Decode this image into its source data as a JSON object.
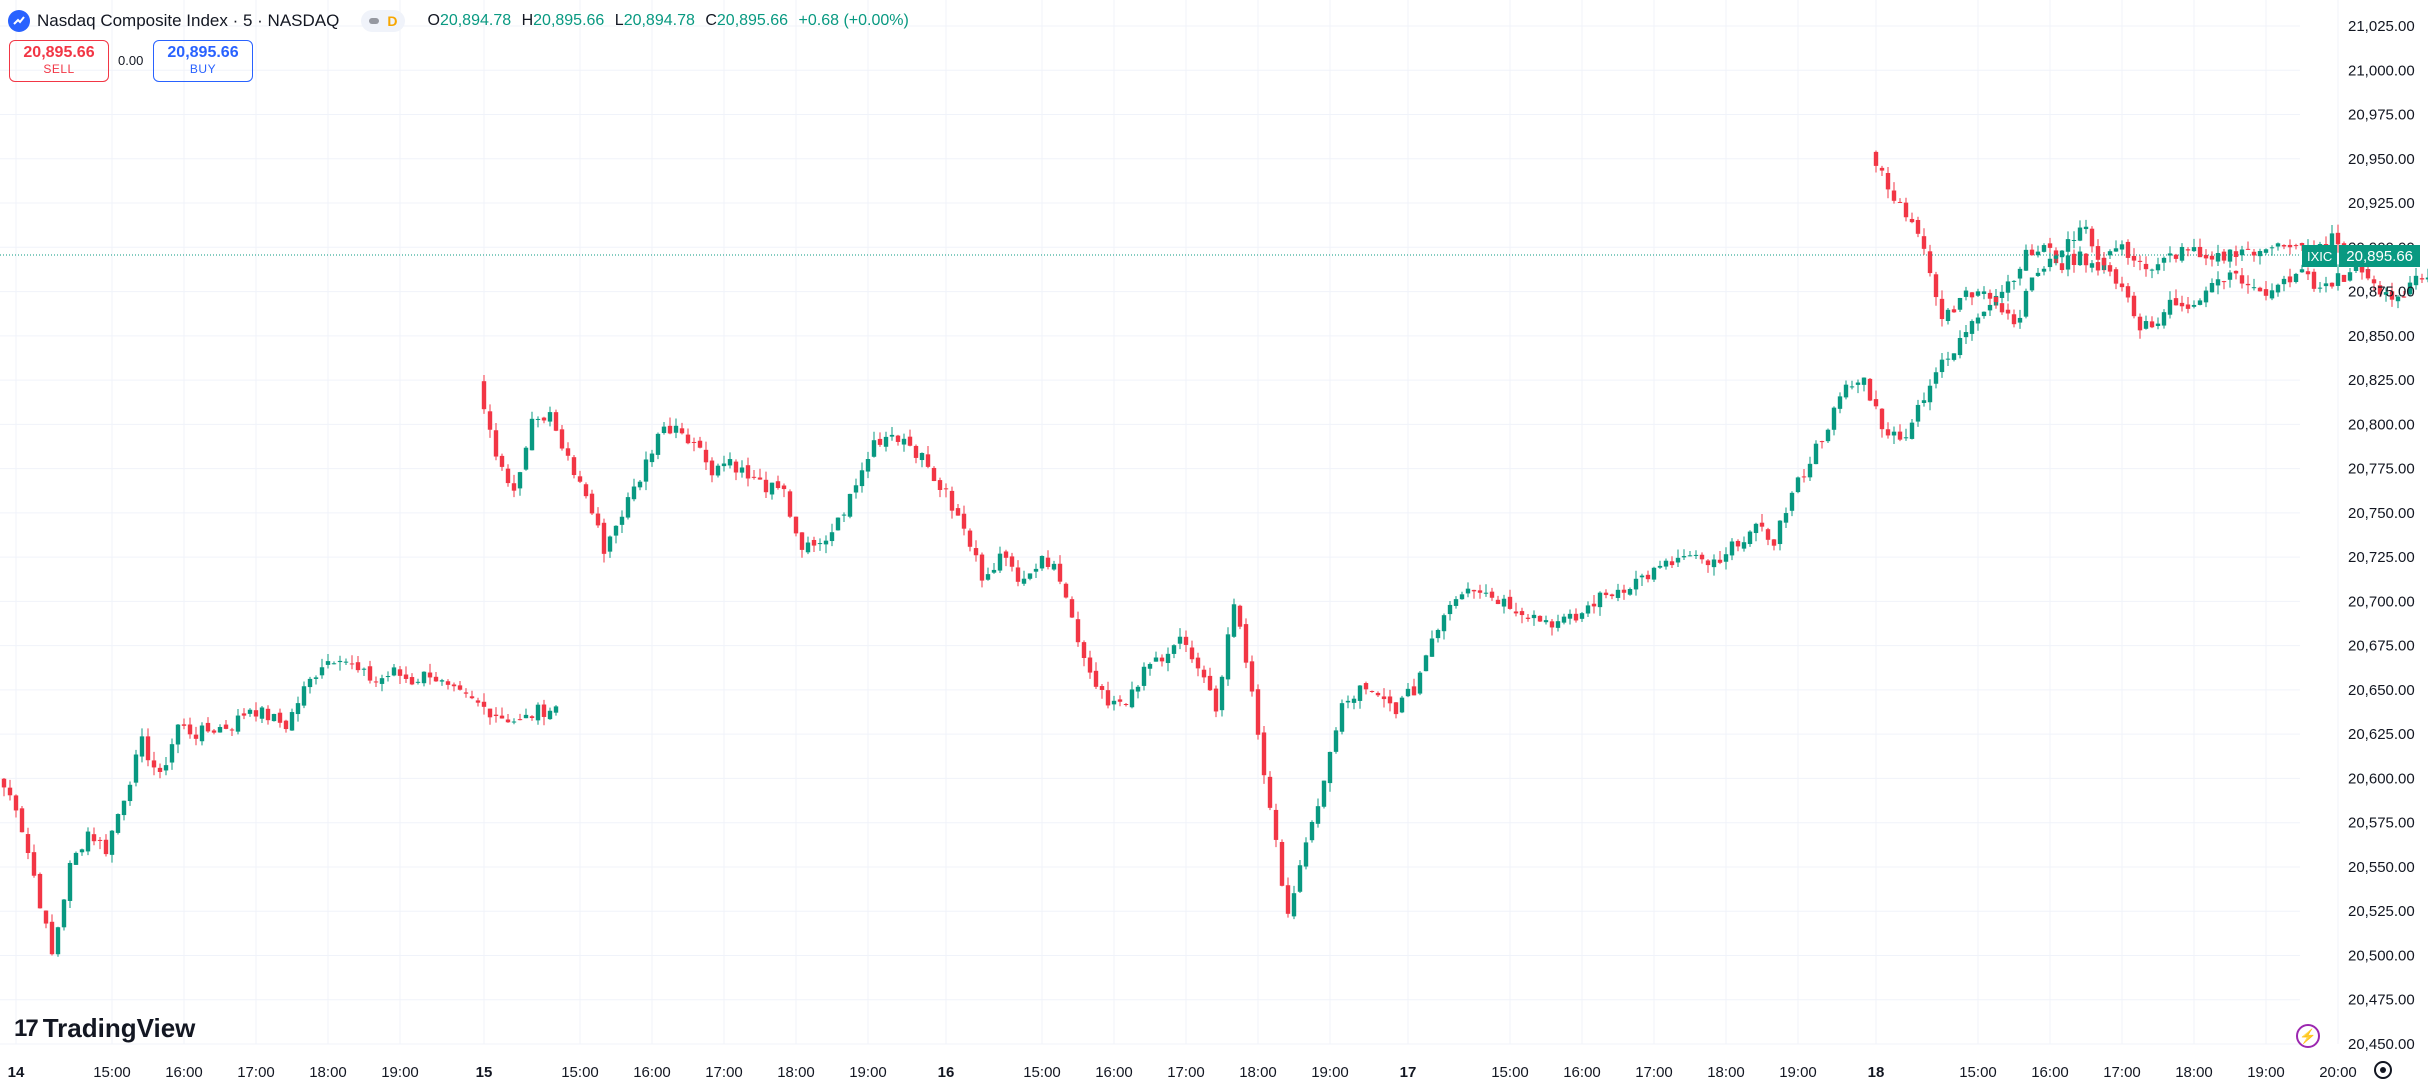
{
  "header": {
    "title": "Nasdaq Composite Index · 5 · NASDAQ",
    "pill_label": "D",
    "ohlc": {
      "o_label": "O",
      "o": "20,894.78",
      "h_label": "H",
      "h": "20,895.66",
      "l_label": "L",
      "l": "20,894.78",
      "c_label": "C",
      "c": "20,895.66",
      "change": "+0.68 (+0.00%)"
    }
  },
  "trade": {
    "sell_price": "20,895.66",
    "sell_label": "SELL",
    "spread": "0.00",
    "buy_price": "20,895.66",
    "buy_label": "BUY"
  },
  "branding": {
    "logo_text": "TradingView",
    "logo_mark": "17"
  },
  "price_tag": {
    "symbol": "IXIC",
    "value": "20,895.66"
  },
  "colors": {
    "up": "#089981",
    "down": "#f23645",
    "grid": "#f0f3fa",
    "text": "#131722",
    "accent": "#2962ff"
  },
  "icons": {
    "logo": "tradingview-logo-icon",
    "bolt": "lightning-bolt-icon",
    "settings": "gear-icon"
  },
  "chart_data": {
    "type": "candlestick",
    "y_axis": {
      "min": 20450,
      "max": 21025,
      "ticks": [
        "21,025.00",
        "21,000.00",
        "20,975.00",
        "20,950.00",
        "20,925.00",
        "20,900.00",
        "20,875.00",
        "20,850.00",
        "20,825.00",
        "20,800.00",
        "20,775.00",
        "20,750.00",
        "20,725.00",
        "20,700.00",
        "20,675.00",
        "20,650.00",
        "20,625.00",
        "20,600.00",
        "20,575.00",
        "20,550.00",
        "20,525.00",
        "20,500.00",
        "20,475.00",
        "20,450.00"
      ],
      "tick_values": [
        21025,
        21000,
        20975,
        20950,
        20925,
        20900,
        20875,
        20850,
        20825,
        20800,
        20775,
        20750,
        20725,
        20700,
        20675,
        20650,
        20625,
        20600,
        20575,
        20550,
        20525,
        20500,
        20475,
        20450
      ]
    },
    "x_axis": {
      "ticks": [
        {
          "label": "14",
          "day": true,
          "slot": 2
        },
        {
          "label": "15:00",
          "slot": 18
        },
        {
          "label": "16:00",
          "slot": 30
        },
        {
          "label": "17:00",
          "slot": 42
        },
        {
          "label": "18:00",
          "slot": 54
        },
        {
          "label": "19:00",
          "slot": 66
        },
        {
          "label": "15",
          "day": true,
          "slot": 80
        },
        {
          "label": "15:00",
          "slot": 96
        },
        {
          "label": "16:00",
          "slot": 108
        },
        {
          "label": "17:00",
          "slot": 120
        },
        {
          "label": "18:00",
          "slot": 132
        },
        {
          "label": "19:00",
          "slot": 144
        },
        {
          "label": "16",
          "day": true,
          "slot": 157
        },
        {
          "label": "15:00",
          "slot": 173
        },
        {
          "label": "16:00",
          "slot": 185
        },
        {
          "label": "17:00",
          "slot": 197
        },
        {
          "label": "18:00",
          "slot": 209
        },
        {
          "label": "19:00",
          "slot": 221
        },
        {
          "label": "17",
          "day": true,
          "slot": 234
        },
        {
          "label": "15:00",
          "slot": 251
        },
        {
          "label": "16:00",
          "slot": 263
        },
        {
          "label": "17:00",
          "slot": 275
        },
        {
          "label": "18:00",
          "slot": 287
        },
        {
          "label": "19:00",
          "slot": 299
        },
        {
          "label": "18",
          "day": true,
          "slot": 312
        },
        {
          "label": "15:00",
          "slot": 329
        },
        {
          "label": "16:00",
          "slot": 341
        },
        {
          "label": "17:00",
          "slot": 353
        },
        {
          "label": "18:00",
          "slot": 365
        },
        {
          "label": "19:00",
          "slot": 377
        },
        {
          "label": "20:00",
          "slot": 389
        }
      ]
    },
    "last_price": 20895.66,
    "segments": [
      {
        "start_slot": 0,
        "path": [
          20600,
          20585,
          20545,
          20500,
          20550,
          20570,
          20560,
          20590,
          20620,
          20600,
          20630,
          20625,
          20628,
          20630,
          20640,
          20635,
          20630,
          20650,
          20665,
          20670,
          20660,
          20655,
          20660,
          20655,
          20660,
          20650,
          20645,
          20640,
          20635,
          20632,
          20638,
          20640
        ]
      },
      {
        "start_slot": 80,
        "path": [
          20825,
          20785,
          20760,
          20800,
          20805,
          20780,
          20760,
          20730,
          20750,
          20770,
          20795,
          20800,
          20790,
          20775,
          20780,
          20770,
          20765,
          20760,
          20730,
          20730,
          20745,
          20765,
          20790,
          20795,
          20790,
          20775,
          20760,
          20740,
          20715,
          20725,
          20715,
          20720,
          20725,
          20690,
          20660,
          20645,
          20640,
          20660,
          20670,
          20680,
          20660,
          20640,
          20700,
          20650,
          20580,
          20525,
          20560,
          20600,
          20640,
          20650,
          20645,
          20640,
          20650,
          20680,
          20700,
          20710,
          20705,
          20700,
          20695,
          20690,
          20688,
          20690,
          20700,
          20705,
          20710,
          20715,
          20720,
          20725,
          20722,
          20720,
          20735,
          20740,
          20735,
          20760,
          20780,
          20800,
          20820,
          20825,
          20800,
          20790,
          20810,
          20830,
          20840,
          20860,
          20870,
          20880,
          20895,
          20900,
          20890,
          20895,
          20890,
          20900,
          20895,
          20885,
          20895,
          20900,
          20890,
          20895,
          20900,
          20895,
          20905,
          20900,
          20898,
          20905,
          20895,
          20885
        ]
      },
      {
        "start_slot": 312,
        "path": [
          20955,
          20935,
          20920,
          20900,
          20860,
          20870,
          20875,
          20870,
          20855,
          20880,
          20895,
          20905,
          20910,
          20890,
          20880,
          20855,
          20860,
          20870,
          20865,
          20880,
          20885,
          20878,
          20870,
          20880,
          20885,
          20878,
          20882,
          20888,
          20880,
          20872,
          20878,
          20885,
          20872,
          20880,
          20895
        ]
      }
    ]
  }
}
